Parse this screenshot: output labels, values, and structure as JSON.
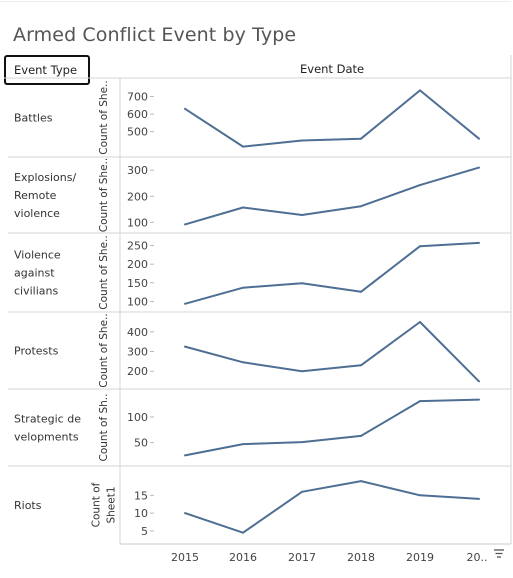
{
  "title": "Armed Conflict Event by Type",
  "header": {
    "row_label": "Event Type",
    "column_label": "Event Date"
  },
  "accent_color": "#4e6f93",
  "chart_data": {
    "type": "line",
    "x": [
      "2015",
      "2016",
      "2017",
      "2018",
      "2019",
      "20.."
    ],
    "panels": [
      {
        "name": "Battles",
        "label_lines": [
          "Battles"
        ],
        "axis_lines": [
          "Count of She.."
        ],
        "ticks": [
          500,
          600,
          700
        ],
        "ylim": [
          390,
          760
        ],
        "values": [
          630,
          415,
          450,
          460,
          735,
          460
        ]
      },
      {
        "name": "Explosions/ Remote violence",
        "label_lines": [
          "Explosions/",
          "Remote",
          "violence"
        ],
        "axis_lines": [
          "Count of She.."
        ],
        "ticks": [
          100,
          200,
          300
        ],
        "ylim": [
          82,
          320
        ],
        "values": [
          92,
          157,
          128,
          162,
          243,
          310
        ]
      },
      {
        "name": "Violence against civilians",
        "label_lines": [
          "Violence",
          "against",
          "civilians"
        ],
        "axis_lines": [
          "Count of She.."
        ],
        "ticks": [
          100,
          150,
          200,
          250
        ],
        "ylim": [
          88,
          262
        ],
        "values": [
          94,
          137,
          149,
          126,
          248,
          257
        ]
      },
      {
        "name": "Protests",
        "label_lines": [
          "Protests"
        ],
        "axis_lines": [
          "Count of She.."
        ],
        "ticks": [
          200,
          300,
          400
        ],
        "ylim": [
          140,
          460
        ],
        "values": [
          325,
          245,
          200,
          230,
          450,
          148
        ]
      },
      {
        "name": "Strategic developments",
        "label_lines": [
          "Strategic de",
          "velopments"
        ],
        "axis_lines": [
          "Count of Sh.."
        ],
        "ticks": [
          50,
          100
        ],
        "ylim": [
          16,
          139
        ],
        "values": [
          25,
          47,
          51,
          63,
          131,
          134
        ]
      },
      {
        "name": "Riots",
        "label_lines": [
          "Riots"
        ],
        "axis_lines": [
          "Count of",
          "Sheet1"
        ],
        "ticks": [
          5,
          10,
          15
        ],
        "ylim": [
          3,
          21
        ],
        "values": [
          10,
          4.5,
          16,
          19,
          15,
          14
        ]
      }
    ]
  }
}
